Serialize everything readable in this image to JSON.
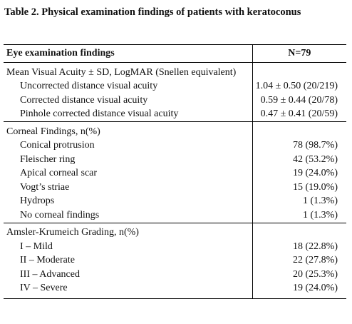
{
  "title": "Table 2. Physical examination findings of patients with keratoconus",
  "table": {
    "header": [
      "Eye examination findings",
      "N=79"
    ],
    "sections": [
      {
        "heading": "Mean Visual Acuity ± SD, LogMAR (Snellen equivalent)",
        "rows": [
          [
            "Uncorrected distance visual acuity",
            "1.04 ± 0.50 (20/219)"
          ],
          [
            "Corrected distance visual acuity",
            "0.59 ± 0.44 (20/78)"
          ],
          [
            "Pinhole corrected distance visual acuity",
            "0.47 ± 0.41 (20/59)"
          ]
        ]
      },
      {
        "heading": "Corneal Findings, n(%)",
        "rows": [
          [
            "Conical protrusion",
            "78 (98.7%)"
          ],
          [
            "Fleischer ring",
            "42 (53.2%)"
          ],
          [
            "Apical corneal scar",
            "19 (24.0%)"
          ],
          [
            "Vogt’s striae",
            "15 (19.0%)"
          ],
          [
            "Hydrops",
            "1 (1.3%)"
          ],
          [
            "No corneal findings",
            "1 (1.3%)"
          ]
        ]
      },
      {
        "heading": "Amsler-Krumeich Grading, n(%)",
        "rows": [
          [
            "I – Mild",
            "18 (22.8%)"
          ],
          [
            "II – Moderate",
            "22 (27.8%)"
          ],
          [
            "III – Advanced",
            "20 (25.3%)"
          ],
          [
            "IV – Severe",
            "19 (24.0%)"
          ]
        ]
      }
    ]
  }
}
